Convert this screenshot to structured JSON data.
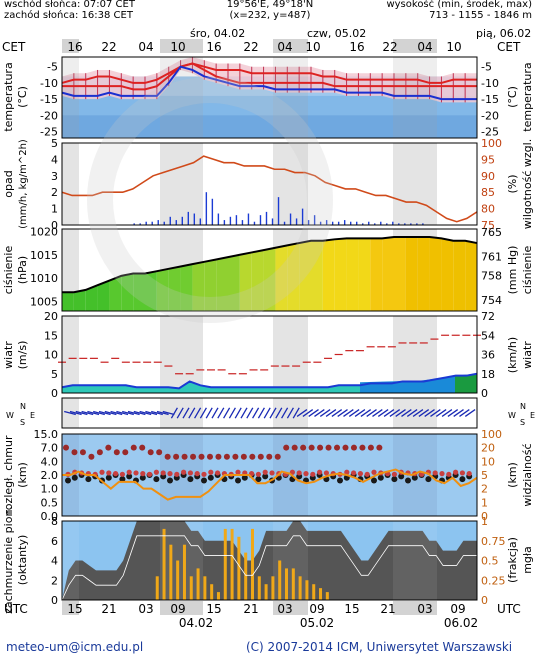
{
  "header": {
    "sunrise": "wschód słońca: 07:07 CET",
    "sunset": "zachód słońca: 16:38 CET",
    "coords": "19°56'E, 49°18'N",
    "grid": "(x=232, y=487)",
    "altitude_label": "wysokość (min, środek, max)",
    "altitude_values": "713 - 1155 - 1846 m"
  },
  "days": [
    "śro, 04.02",
    "czw, 05.02",
    "pią, 06.02"
  ],
  "tz_label": "CET",
  "utc_label": "UTC",
  "top_hours": [
    "16",
    "22",
    "04",
    "10",
    "16",
    "22",
    "04",
    "10",
    "16",
    "22",
    "04",
    "10"
  ],
  "bottom_hours": [
    "15",
    "21",
    "03",
    "09",
    "15",
    "21",
    "03",
    "09",
    "15",
    "21",
    "03",
    "09"
  ],
  "bottom_dates": [
    "04.02",
    "05.02",
    "06.02"
  ],
  "footer": {
    "email": "meteo-um@icm.edu.pl",
    "copyright": "(C) 2007-2014 ICM, Uniwersytet Warszawski"
  },
  "panels": {
    "temperature": {
      "left_label": "temperatura",
      "left_unit": "(°C)",
      "right_label": "temperatura",
      "right_unit": "(°C)"
    },
    "precip": {
      "left_label": "opad",
      "left_unit": "(mm/h, kg/m^2h)",
      "right_label": "wilgotność wzgl.",
      "right_unit": "(%)"
    },
    "pressure": {
      "left_label": "ciśnienie",
      "left_unit": "(hPa)",
      "right_label": "ciśnienie",
      "right_unit": "(mm Hg)"
    },
    "wind": {
      "left_label": "wiatr",
      "left_unit": "(m/s)",
      "right_label": "wiatr",
      "right_unit": "(km/h)"
    },
    "winddir": {
      "left_label": "W^N_E^S",
      "right_label": "W^N_E^S"
    },
    "visibility": {
      "left_label": "rozległ. chmur",
      "left_unit": "(km)",
      "right_label": "widzialność",
      "right_unit": "(km)"
    },
    "clouds": {
      "left_label": "zachmurzenie pion.",
      "left_unit": "(oktanty)",
      "right_label": "mgła",
      "right_unit": "(frakcja)"
    }
  },
  "chart_data": [
    {
      "type": "line",
      "name": "temperature",
      "x": [
        0,
        1,
        2,
        3,
        4,
        5,
        6,
        7,
        8,
        9,
        10,
        11,
        12,
        13,
        14,
        15,
        16,
        17,
        18,
        19,
        20,
        21,
        22,
        23,
        24,
        25,
        26,
        27,
        28,
        29,
        30,
        31,
        32,
        33,
        34,
        35
      ],
      "series": [
        {
          "name": "max",
          "values": [
            -10,
            -9,
            -9,
            -8,
            -8,
            -9,
            -10,
            -10,
            -9,
            -7,
            -5,
            -4,
            -5,
            -6,
            -6,
            -6,
            -7,
            -7,
            -7,
            -7,
            -7,
            -7,
            -8,
            -8,
            -9,
            -9,
            -9,
            -9,
            -9,
            -9,
            -9,
            -10,
            -10,
            -9,
            -9,
            -9
          ],
          "color": "#d22"
        },
        {
          "name": "mean",
          "values": [
            -11,
            -11,
            -11,
            -11,
            -11,
            -11,
            -12,
            -12,
            -11,
            -8,
            -5,
            -4,
            -6,
            -8,
            -9,
            -10,
            -10,
            -10,
            -10,
            -10,
            -10,
            -10,
            -10,
            -11,
            -11,
            -11,
            -11,
            -11,
            -11,
            -11,
            -11,
            -11,
            -11,
            -11,
            -11,
            -11
          ],
          "color": "#d22"
        },
        {
          "name": "min",
          "values": [
            -13,
            -14,
            -14,
            -14,
            -13,
            -14,
            -14,
            -14,
            -14,
            -10,
            -5,
            -6,
            -8,
            -9,
            -10,
            -11,
            -11,
            -11,
            -12,
            -12,
            -12,
            -12,
            -12,
            -12,
            -13,
            -13,
            -13,
            -13,
            -14,
            -14,
            -14,
            -14,
            -15,
            -15,
            -15,
            -15
          ],
          "color": "#1a2fd0"
        }
      ],
      "ylim": [
        -27,
        -2
      ],
      "yticks": [
        -5,
        -10,
        -15,
        -20,
        -25
      ]
    },
    {
      "type": "bar",
      "name": "precipitation",
      "yticks_left": [
        0,
        0.5,
        1,
        1.5,
        2,
        2.5,
        3,
        3.5,
        4,
        4.5,
        5
      ],
      "yticks_right": [
        75,
        80,
        85,
        90,
        95,
        100
      ],
      "precip": [
        0,
        0,
        0,
        0,
        0,
        0,
        0,
        0,
        0,
        0,
        0,
        0,
        0.1,
        0.1,
        0.2,
        0.2,
        0.3,
        0.2,
        0.5,
        0.3,
        0.5,
        0.8,
        0.7,
        0.4,
        2,
        1.6,
        0.7,
        0.3,
        0.5,
        0.6,
        0.3,
        0.7,
        0.2,
        0.6,
        0.8,
        0.4,
        1.7,
        0.2,
        0.7,
        0.4,
        1,
        0.3,
        0.6,
        0.2,
        0.3,
        0.2,
        0.2,
        0.3,
        0.2,
        0.2,
        0.1,
        0.2,
        0.1,
        0.2,
        0.1,
        0.2,
        0.1,
        0.1,
        0.1,
        0.1,
        0.1,
        0,
        0,
        0,
        0,
        0,
        0,
        0,
        0,
        0
      ],
      "humidity": [
        85,
        84,
        84,
        84,
        85,
        85,
        85,
        86,
        88,
        90,
        91,
        92,
        93,
        94,
        96,
        95,
        94,
        94,
        93,
        93,
        93,
        92,
        92,
        91,
        91,
        90,
        88,
        87,
        86,
        86,
        85,
        84,
        84,
        83,
        82,
        82,
        81,
        79,
        77,
        76,
        77,
        79
      ],
      "ylim_left": [
        0,
        5
      ],
      "ylim_right": [
        75,
        100
      ]
    },
    {
      "type": "area",
      "name": "pressure",
      "x": [
        0,
        1,
        2,
        3,
        4,
        5,
        6,
        7,
        8,
        9,
        10,
        11,
        12,
        13,
        14,
        15,
        16,
        17,
        18,
        19,
        20,
        21,
        22,
        23,
        24,
        25,
        26,
        27,
        28,
        29,
        30,
        31,
        32,
        33,
        34,
        35
      ],
      "values": [
        1007,
        1007,
        1007.5,
        1008.5,
        1009.5,
        1010.5,
        1011,
        1011,
        1011.5,
        1012,
        1012.5,
        1013,
        1013.5,
        1014,
        1014.5,
        1015,
        1015.5,
        1016,
        1016.5,
        1017,
        1017.5,
        1018,
        1018,
        1018.3,
        1018.5,
        1018.5,
        1018.5,
        1018.5,
        1018.8,
        1018.8,
        1018.8,
        1018.8,
        1018.5,
        1018,
        1018,
        1017.5
      ],
      "ylim": [
        1003,
        1020.5
      ],
      "yticks_left": [
        1005,
        1010,
        1015,
        1020
      ],
      "yticks_right": [
        754,
        758,
        761,
        765
      ]
    },
    {
      "type": "line",
      "name": "wind",
      "yticks_left": [
        0,
        5,
        10,
        15,
        20
      ],
      "yticks_right": [
        0,
        18,
        36,
        54,
        72
      ],
      "gust": [
        8,
        9,
        9,
        9,
        8,
        9,
        8,
        8,
        8,
        8,
        7,
        5,
        5,
        6,
        6,
        6,
        5,
        5,
        6,
        6,
        7,
        7,
        7,
        8,
        8,
        9,
        10,
        11,
        11,
        12,
        12,
        12,
        13,
        13,
        13,
        14,
        15,
        15,
        15,
        15
      ],
      "speed": [
        1.5,
        2,
        2,
        2,
        2,
        2,
        2,
        1.5,
        1.5,
        1.5,
        1.5,
        1.2,
        3,
        2,
        1.5,
        1.5,
        1.5,
        1.5,
        1.5,
        1.5,
        1.5,
        1.5,
        1.5,
        1.5,
        1.5,
        1.5,
        2,
        2,
        2,
        2.5,
        2.5,
        2.5,
        3,
        3,
        3,
        3.5,
        4,
        4.5,
        4.5,
        5
      ],
      "ylim": [
        0,
        20
      ]
    },
    {
      "type": "scatter",
      "name": "visibility",
      "yticks_left": [
        "0.0",
        "0.5",
        "1.0",
        "2.0",
        "4.0",
        "7.0",
        "15.0"
      ],
      "yticks_right": [
        0,
        1,
        2,
        5,
        10,
        20,
        100
      ],
      "cloud_base_high": [
        7,
        6,
        6,
        5,
        6,
        7,
        6,
        6,
        7,
        7,
        6,
        6,
        5,
        5,
        5,
        5,
        5,
        5,
        5,
        5,
        5,
        5,
        5,
        5,
        5,
        5,
        7,
        7,
        7,
        7,
        7,
        7,
        7,
        7,
        7,
        7,
        7,
        7,
        7,
        7,
        7,
        7,
        7,
        7,
        7,
        7,
        7,
        7,
        7,
        7
      ],
      "visibility": [
        2,
        2,
        2.5,
        2,
        2,
        1.5,
        1,
        1.5,
        1.5,
        1.5,
        1,
        1,
        0.8,
        0.6,
        0.7,
        0.7,
        0.7,
        0.7,
        0.9,
        1.4,
        2,
        2,
        2,
        2,
        1.4,
        1.4,
        1.7,
        2.5,
        2.2,
        1.6,
        1.4,
        1.5,
        1.8,
        2,
        2.2,
        2,
        1.8,
        1.5,
        1.8,
        2.2,
        2.5,
        2.8,
        2.2,
        2,
        2.5,
        2.2,
        1.6,
        1.4,
        1.8,
        1.2,
        1.4,
        1.8
      ],
      "ylim": [
        0,
        15
      ]
    },
    {
      "type": "bar",
      "name": "clouds",
      "yticks_left": [
        0,
        2,
        4,
        6,
        8
      ],
      "yticks_right": [
        0,
        0.25,
        0.5,
        0.75,
        1
      ],
      "cloud_cover": [
        0,
        3,
        4,
        4,
        3.5,
        3,
        3,
        3,
        3,
        4,
        6,
        8,
        8,
        8,
        8,
        8,
        8,
        8,
        8,
        7,
        7,
        6,
        6,
        6,
        6,
        6,
        5,
        4,
        4,
        5,
        7,
        7,
        7,
        7,
        8,
        8,
        7,
        7,
        7,
        7,
        7,
        7,
        6,
        5,
        4,
        4,
        5,
        6,
        7,
        7,
        7,
        7,
        7,
        7,
        6,
        6,
        5,
        5,
        5,
        6,
        6,
        6
      ],
      "fog": [
        0,
        0,
        0,
        0,
        0,
        0,
        0,
        0,
        0,
        0,
        0,
        0,
        0,
        0,
        0.3,
        0.9,
        0.7,
        0.5,
        0.7,
        0.3,
        0.4,
        0.3,
        0.2,
        0.1,
        0.9,
        0.9,
        0.8,
        0.6,
        0.9,
        0.3,
        0.2,
        0.3,
        0.5,
        0.4,
        0.4,
        0.3,
        0.25,
        0.2,
        0.15,
        0.1,
        0,
        0,
        0,
        0,
        0,
        0,
        0,
        0,
        0,
        0,
        0,
        0,
        0,
        0,
        0,
        0,
        0,
        0,
        0,
        0,
        0,
        0
      ],
      "ylim": [
        0,
        8
      ]
    }
  ]
}
